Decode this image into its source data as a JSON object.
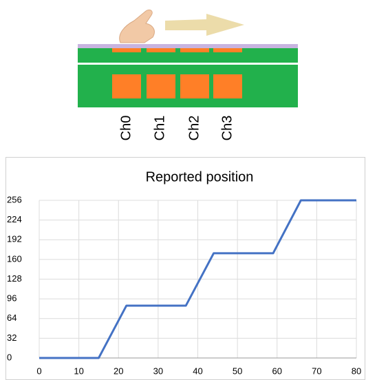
{
  "diagram": {
    "channels": [
      "Ch0",
      "Ch1",
      "Ch2",
      "Ch3"
    ]
  },
  "chart_data": {
    "type": "line",
    "title": "Reported position",
    "x": [
      0,
      15,
      22,
      37,
      44,
      59,
      66,
      80
    ],
    "series": [
      {
        "color": "#4472c4",
        "values": [
          0,
          0,
          85,
          85,
          170,
          170,
          256,
          256
        ]
      }
    ],
    "xlim": [
      0,
      80
    ],
    "xticks": [
      0,
      10,
      20,
      30,
      40,
      50,
      60,
      70,
      80
    ],
    "ylim": [
      0,
      256
    ],
    "yticks": [
      0,
      32,
      64,
      96,
      128,
      160,
      192,
      224,
      256
    ],
    "grid": true
  }
}
